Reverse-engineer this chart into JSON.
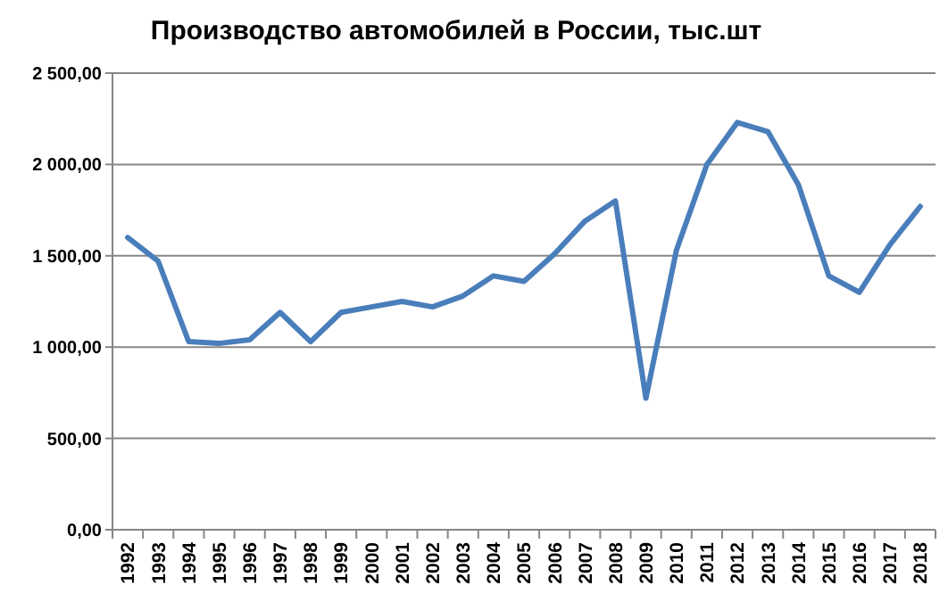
{
  "chart_data": {
    "type": "line",
    "title": "Производство автомобилей в России, тыс.шт",
    "categories": [
      "1992",
      "1993",
      "1994",
      "1995",
      "1996",
      "1997",
      "1998",
      "1999",
      "2000",
      "2001",
      "2002",
      "2003",
      "2004",
      "2005",
      "2006",
      "2007",
      "2008",
      "2009",
      "2010",
      "2011",
      "2012",
      "2013",
      "2014",
      "2015",
      "2016",
      "2017",
      "2018"
    ],
    "series": [
      {
        "color": "#4a7ebb",
        "values": [
          1600,
          1470,
          1030,
          1020,
          1040,
          1190,
          1030,
          1190,
          1220,
          1250,
          1220,
          1280,
          1390,
          1360,
          1510,
          1690,
          1800,
          720,
          1530,
          2000,
          2230,
          2180,
          1890,
          1390,
          1300,
          1560,
          1770
        ]
      }
    ],
    "ylim": [
      0,
      2500
    ],
    "yticks": [
      {
        "value": 0,
        "label": "0,00"
      },
      {
        "value": 500,
        "label": "500,00"
      },
      {
        "value": 1000,
        "label": "1 000,00"
      },
      {
        "value": 1500,
        "label": "1 500,00"
      },
      {
        "value": 2000,
        "label": "2 000,00"
      },
      {
        "value": 2500,
        "label": "2 500,00"
      }
    ],
    "grid": "y",
    "marker": "none",
    "line_style": "solid"
  }
}
